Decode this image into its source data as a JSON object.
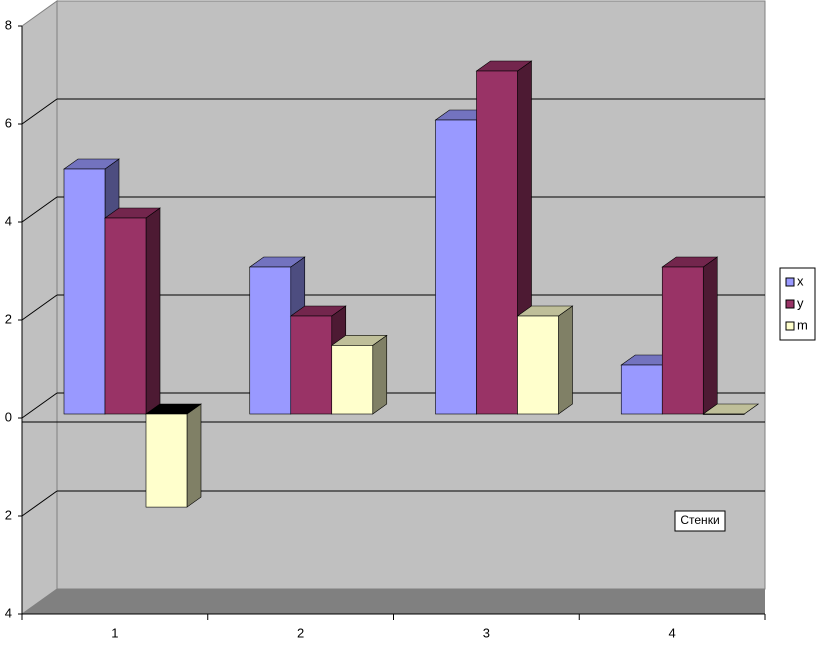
{
  "chart_data": {
    "type": "bar3d",
    "categories": [
      "1",
      "2",
      "3",
      "4"
    ],
    "series": [
      {
        "name": "x",
        "color": "#9999ff",
        "values": [
          5,
          3,
          6,
          1
        ]
      },
      {
        "name": "y",
        "color": "#993366",
        "values": [
          4,
          2,
          7,
          3
        ]
      },
      {
        "name": "m",
        "color": "#ffffcc",
        "values": [
          -1.9,
          1.4,
          2,
          0
        ]
      }
    ],
    "ylim": [
      -4,
      8
    ],
    "yticks": [
      {
        "value": -4,
        "label": "4"
      },
      {
        "value": -2,
        "label": "2"
      },
      0,
      2,
      4,
      6,
      8
    ],
    "grid": true,
    "legend": "right",
    "annotation": "Стенки"
  }
}
